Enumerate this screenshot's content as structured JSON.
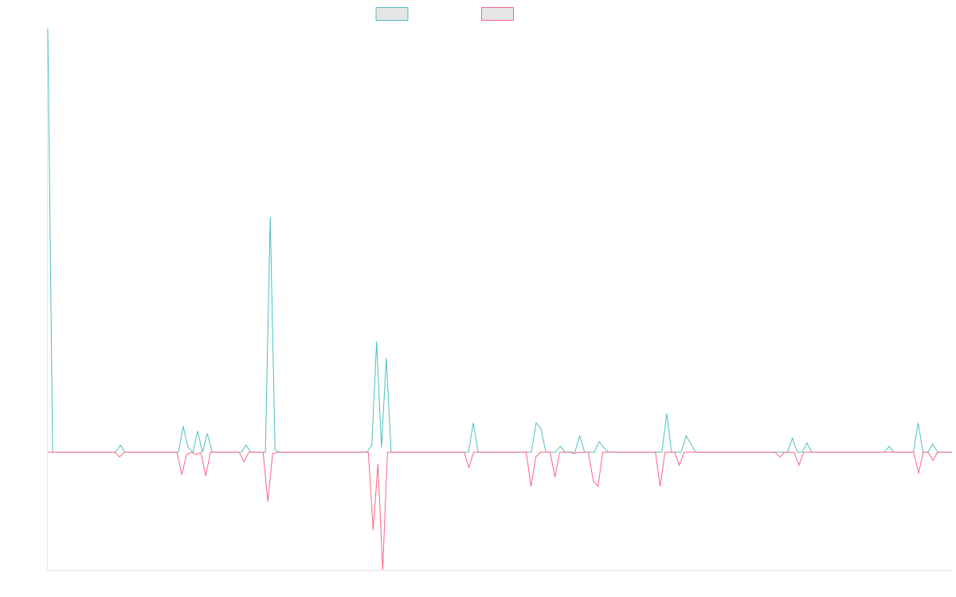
{
  "chart_data": {
    "type": "line",
    "title": "",
    "xlabel": "",
    "ylabel": "",
    "grid": false,
    "legend_position": "top-center",
    "ylim": [
      -5,
      18
    ],
    "series": [
      {
        "color": "#4bc0c0",
        "fill": "#e6e6e6",
        "values": [
          18,
          0,
          0,
          0,
          0,
          0,
          0,
          0,
          0,
          0,
          0,
          0,
          0,
          0,
          0,
          0.3,
          0,
          0,
          0,
          0,
          0,
          0,
          0,
          0,
          0,
          0,
          0,
          0,
          1.1,
          0.2,
          0,
          0.9,
          0,
          0.8,
          0,
          0,
          0,
          0,
          0,
          0,
          0,
          0.3,
          0,
          0,
          0,
          0,
          10,
          0.1,
          0,
          0,
          0,
          0,
          0,
          0,
          0,
          0,
          0,
          0,
          0,
          0,
          0,
          0,
          0,
          0,
          0,
          0,
          0,
          0.3,
          4.7,
          0.2,
          4.0,
          0,
          0,
          0,
          0,
          0,
          0,
          0,
          0,
          0,
          0,
          0,
          0,
          0,
          0,
          0,
          0,
          0,
          1.25,
          0,
          0,
          0,
          0,
          0,
          0,
          0,
          0,
          0,
          0,
          0,
          0,
          1.25,
          1.0,
          0,
          0,
          0,
          0.25,
          0,
          0,
          0,
          0.7,
          0,
          0,
          0,
          0.45,
          0.2,
          0,
          0,
          0,
          0,
          0,
          0,
          0,
          0,
          0,
          0,
          0,
          0,
          1.65,
          0,
          0,
          0,
          0.7,
          0.35,
          0,
          0,
          0,
          0,
          0,
          0,
          0,
          0,
          0,
          0,
          0,
          0,
          0,
          0,
          0,
          0,
          0,
          0,
          0,
          0,
          0.6,
          0,
          0,
          0.4,
          0,
          0,
          0,
          0,
          0,
          0,
          0,
          0,
          0,
          0,
          0,
          0,
          0,
          0,
          0,
          0,
          0.25,
          0,
          0,
          0,
          0,
          0,
          1.25,
          0,
          0,
          0.35,
          0,
          0,
          0,
          0
        ]
      },
      {
        "color": "#ff6384",
        "fill": "#e6e6e6",
        "values": [
          0,
          0,
          0,
          0,
          0,
          0,
          0,
          0,
          0,
          0,
          0,
          0,
          0,
          0,
          0,
          -0.2,
          0,
          0,
          0,
          0,
          0,
          0,
          0,
          0,
          0,
          0,
          0,
          0,
          -0.95,
          -0.1,
          0,
          -0.1,
          0,
          -1.0,
          0,
          0,
          0,
          0,
          0,
          0,
          0,
          -0.4,
          0,
          0,
          0,
          0,
          -2.1,
          -0.05,
          0,
          0,
          0,
          0,
          0,
          0,
          0,
          0,
          0,
          0,
          0,
          0,
          0,
          0,
          0,
          0,
          0,
          0,
          0,
          0,
          -3.3,
          -0.5,
          -5.0,
          0,
          0,
          0,
          0,
          0,
          0,
          0,
          0,
          0,
          0,
          0,
          0,
          0,
          0,
          0,
          0,
          0,
          -0.65,
          0,
          0,
          0,
          0,
          0,
          0,
          0,
          0,
          0,
          0,
          0,
          0,
          -1.45,
          -0.2,
          0,
          0,
          0,
          -1.05,
          0,
          0,
          0,
          -0.05,
          0,
          0,
          0,
          -1.2,
          -1.45,
          0,
          0,
          0,
          0,
          0,
          0,
          0,
          0,
          0,
          0,
          0,
          0,
          -1.45,
          0,
          0,
          0,
          -0.55,
          0,
          0,
          0,
          0,
          0,
          0,
          0,
          0,
          0,
          0,
          0,
          0,
          0,
          0,
          0,
          0,
          0,
          0,
          0,
          0,
          -0.2,
          0,
          0,
          0,
          -0.55,
          0,
          0,
          0,
          0,
          0,
          0,
          0,
          0,
          0,
          0,
          0,
          0,
          0,
          0,
          0,
          0,
          0,
          0,
          0,
          0,
          0,
          0,
          0,
          0,
          -0.9,
          0,
          0,
          -0.35,
          0,
          0,
          0,
          0
        ]
      }
    ]
  }
}
